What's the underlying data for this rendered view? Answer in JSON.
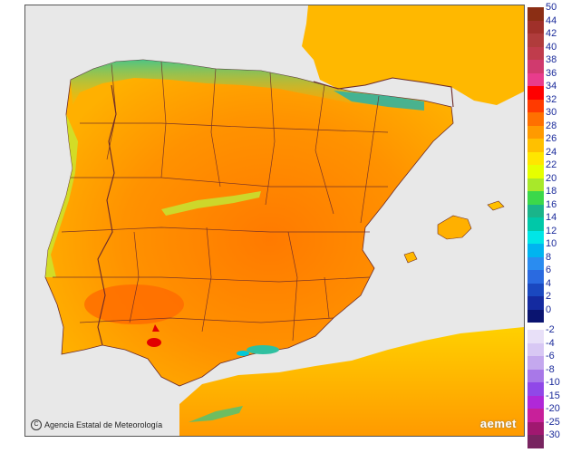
{
  "map": {
    "credit_text": "Agencia Estatal de Meteorología",
    "credit_icon": "copyright-icon",
    "logo_text": "aemet",
    "colors": {
      "sea": "#e8e8e8",
      "land_base": "#ffa000",
      "coast_cool": "#00c8d8",
      "north_green": "#34c88a",
      "south_orange": "#ff7a00",
      "hot_spot": "#e10000",
      "borders": "#6b2a2a",
      "africa": "#ffb000"
    }
  },
  "legend": {
    "positive": [
      {
        "label": "50",
        "color": "#8b2e14"
      },
      {
        "label": "44",
        "color": "#a0302a"
      },
      {
        "label": "42",
        "color": "#b03c3c"
      },
      {
        "label": "40",
        "color": "#c03c4c"
      },
      {
        "label": "38",
        "color": "#d03a6e"
      },
      {
        "label": "36",
        "color": "#e83c8c"
      },
      {
        "label": "34",
        "color": "#ff0000"
      },
      {
        "label": "32",
        "color": "#ff3a00"
      },
      {
        "label": "30",
        "color": "#ff7000"
      },
      {
        "label": "28",
        "color": "#ff9a00"
      },
      {
        "label": "26",
        "color": "#ffc000"
      },
      {
        "label": "24",
        "color": "#ffe600"
      },
      {
        "label": "22",
        "color": "#e6ff00"
      },
      {
        "label": "20",
        "color": "#a8e82a"
      },
      {
        "label": "18",
        "color": "#3cd84a"
      },
      {
        "label": "16",
        "color": "#1ab48a"
      },
      {
        "label": "14",
        "color": "#00c8a8"
      },
      {
        "label": "12",
        "color": "#00e6e6"
      },
      {
        "label": "10",
        "color": "#00b4f0"
      },
      {
        "label": "8",
        "color": "#2a8cf0"
      },
      {
        "label": "6",
        "color": "#2a6ae0"
      },
      {
        "label": "4",
        "color": "#1a48c0"
      },
      {
        "label": "2",
        "color": "#142aa0"
      },
      {
        "label": "0",
        "color": "#0a1470"
      }
    ],
    "negative": [
      {
        "label": "-2",
        "color": "#e8e0f8"
      },
      {
        "label": "-4",
        "color": "#d8c8f4"
      },
      {
        "label": "-6",
        "color": "#c4a8ee"
      },
      {
        "label": "-8",
        "color": "#a878e8"
      },
      {
        "label": "-10",
        "color": "#9048e8"
      },
      {
        "label": "-15",
        "color": "#b028d8"
      },
      {
        "label": "-20",
        "color": "#c8209a"
      },
      {
        "label": "-25",
        "color": "#a01870"
      },
      {
        "label": "-30",
        "color": "#782460"
      }
    ]
  }
}
